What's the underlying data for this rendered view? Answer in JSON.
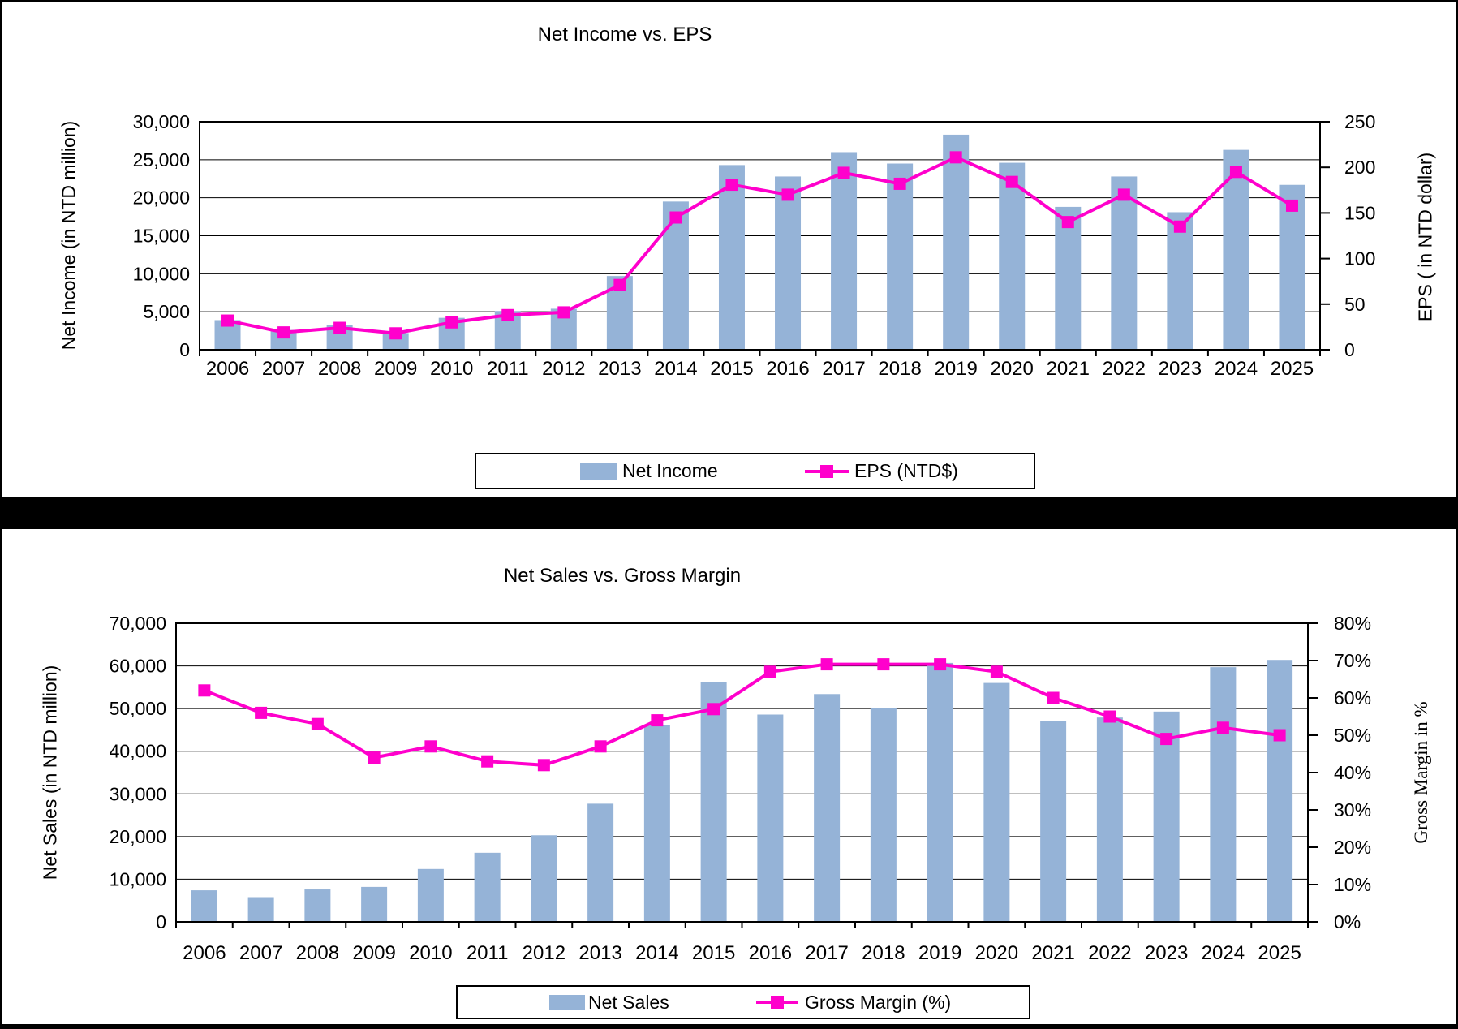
{
  "page": {
    "background": "#ffffff",
    "border_color": "#000000",
    "separator_color": "#000000"
  },
  "chart_data": [
    {
      "type": "bar+line",
      "title": "Net Income vs. EPS",
      "grid": "horizontal",
      "categories": [
        "2006",
        "2007",
        "2008",
        "2009",
        "2010",
        "2011",
        "2012",
        "2013",
        "2014",
        "2015",
        "2016",
        "2017",
        "2018",
        "2019",
        "2020",
        "2021",
        "2022",
        "2023",
        "2024",
        "2025"
      ],
      "left_axis": {
        "title": "Net Income (in NTD million)",
        "min": 0,
        "max": 30000,
        "step": 5000,
        "tick_labels": [
          "30,000",
          "25,000",
          "20,000",
          "15,000",
          "10,000",
          "5,000",
          "0"
        ]
      },
      "right_axis": {
        "title": "EPS ( in NTD dollar)",
        "min": 0,
        "max": 250,
        "step": 50,
        "tick_labels": [
          "250",
          "200",
          "150",
          "100",
          "50",
          "0"
        ]
      },
      "series": [
        {
          "name": "Net Income",
          "type": "bar",
          "axis": "left",
          "color": "#95B3D7",
          "values": [
            3900,
            2600,
            3300,
            2200,
            4200,
            5100,
            5400,
            9700,
            19500,
            24300,
            22800,
            26000,
            24500,
            28300,
            24600,
            18800,
            22800,
            18100,
            26300,
            21700
          ]
        },
        {
          "name": "EPS (NTD$)",
          "type": "line",
          "axis": "right",
          "color": "#FF00CC",
          "values": [
            32,
            19,
            24,
            18,
            30,
            38,
            41,
            71,
            145,
            181,
            170,
            194,
            182,
            211,
            184,
            140,
            170,
            135,
            195,
            158
          ]
        }
      ],
      "legend": {
        "position": "bottom",
        "entries": [
          "Net Income",
          "EPS (NTD$)"
        ]
      }
    },
    {
      "type": "bar+line",
      "title": "Net Sales vs. Gross Margin",
      "grid": "horizontal",
      "categories": [
        "2006",
        "2007",
        "2008",
        "2009",
        "2010",
        "2011",
        "2012",
        "2013",
        "2014",
        "2015",
        "2016",
        "2017",
        "2018",
        "2019",
        "2020",
        "2021",
        "2022",
        "2023",
        "2024",
        "2025"
      ],
      "left_axis": {
        "title": "Net Sales (in NTD million)",
        "min": 0,
        "max": 70000,
        "step": 10000,
        "tick_labels": [
          "70,000",
          "60,000",
          "50,000",
          "40,000",
          "30,000",
          "20,000",
          "10,000",
          "0"
        ]
      },
      "right_axis": {
        "title": "Gross Margin in %",
        "min": 0,
        "max": 80,
        "step": 10,
        "tick_labels": [
          "80%",
          "70%",
          "60%",
          "50%",
          "40%",
          "30%",
          "20%",
          "10%",
          "0%"
        ]
      },
      "series": [
        {
          "name": "Net Sales",
          "type": "bar",
          "axis": "left",
          "color": "#95B3D7",
          "values": [
            7400,
            5800,
            7600,
            8200,
            12400,
            16200,
            20300,
            27700,
            46100,
            56200,
            48600,
            53400,
            50200,
            60700,
            56000,
            47000,
            47900,
            49300,
            59700,
            61400
          ]
        },
        {
          "name": "Gross Margin (%)",
          "type": "line",
          "axis": "right",
          "color": "#FF00CC",
          "values": [
            62,
            56,
            53,
            44,
            47,
            43,
            42,
            47,
            54,
            57,
            67,
            69,
            69,
            69,
            67,
            60,
            55,
            49,
            52,
            50
          ]
        }
      ],
      "legend": {
        "position": "bottom",
        "entries": [
          "Net Sales",
          "Gross Margin (%)"
        ]
      }
    }
  ]
}
